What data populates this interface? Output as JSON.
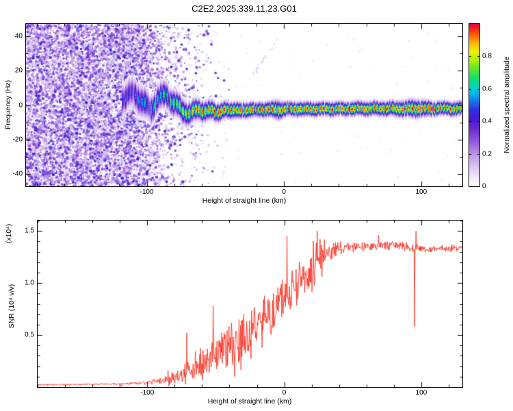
{
  "title": "C2E2.2025.339.11.23.G01",
  "colors": {
    "background": "#ffffff",
    "axis": "#000000",
    "snr_line": "#f93222"
  },
  "chart_data": [
    {
      "type": "heatmap",
      "title": "C2E2.2025.339.11.23.G01",
      "xlabel": "Height of straight line (km)",
      "ylabel": "Frequency (Hz)",
      "xlim": [
        -188,
        130
      ],
      "ylim": [
        -47,
        47
      ],
      "x_ticks": [
        -100,
        0,
        100
      ],
      "x_tick_labels": [
        "-100",
        "0",
        "100"
      ],
      "y_ticks": [
        -40,
        -20,
        0,
        20,
        40
      ],
      "y_tick_labels": [
        "-40",
        "-20",
        "0",
        "20",
        "40"
      ],
      "x_minor_step": 20,
      "y_minor_step": 10,
      "grid": false,
      "colorbar": {
        "label": "Normalized spectral amplitude",
        "range": [
          0,
          1
        ],
        "ticks": [
          0,
          0.2,
          0.4,
          0.6,
          0.8
        ],
        "tick_labels": [
          "0",
          "0.2",
          "0.4",
          "0.6",
          "0.8"
        ]
      },
      "colormap": {
        "stops": [
          [
            0.0,
            "#ffffff"
          ],
          [
            0.05,
            "#f3ecfb"
          ],
          [
            0.12,
            "#dcc8f2"
          ],
          [
            0.2,
            "#bb94e8"
          ],
          [
            0.28,
            "#9257dd"
          ],
          [
            0.36,
            "#6a2ad0"
          ],
          [
            0.42,
            "#4619cf"
          ],
          [
            0.47,
            "#2f2fe0"
          ],
          [
            0.52,
            "#1e6df0"
          ],
          [
            0.56,
            "#00a8f0"
          ],
          [
            0.6,
            "#00d0d0"
          ],
          [
            0.64,
            "#00dc9a"
          ],
          [
            0.68,
            "#20e060"
          ],
          [
            0.73,
            "#66e828"
          ],
          [
            0.78,
            "#b2ee00"
          ],
          [
            0.83,
            "#eef000"
          ],
          [
            0.87,
            "#ffc800"
          ],
          [
            0.91,
            "#ff8c00"
          ],
          [
            0.95,
            "#ff4600"
          ],
          [
            1.0,
            "#e4003c"
          ]
        ]
      },
      "noise_field": {
        "comment": "broadband purple speckle noise left of signal acquisition",
        "x_range": [
          -188,
          -40
        ],
        "dense_end_km": -105,
        "fade_scale_km": 16,
        "value_range": [
          0.08,
          0.48
        ]
      },
      "signal_trace": {
        "comment": "narrowband carrier: center frequency (Hz), peak normalized amplitude, gaussian half-width sigma (Hz) vs height (km)",
        "x": [
          -118,
          -110,
          -103,
          -97,
          -92,
          -86,
          -80,
          -74,
          -68,
          -62,
          -56,
          -50,
          -44,
          -38,
          -30,
          -20,
          -10,
          -5,
          0,
          20,
          40,
          60,
          80,
          95,
          110,
          130
        ],
        "freq": [
          4,
          7,
          2,
          -3,
          4,
          6,
          1,
          -3,
          -5,
          -2,
          -4,
          -3,
          -4,
          -3,
          -3,
          -2.5,
          -2.5,
          -2.5,
          -2.5,
          -2.2,
          -2.2,
          -2,
          -2,
          -2,
          -2,
          -2
        ],
        "peak": [
          0.45,
          0.5,
          0.55,
          0.6,
          0.6,
          0.65,
          0.72,
          0.8,
          0.88,
          0.95,
          1,
          1,
          1,
          1,
          1,
          1,
          1,
          1,
          1,
          1,
          1,
          1,
          1,
          1,
          1,
          1
        ],
        "sigma": [
          5,
          5,
          4.8,
          4.6,
          4.4,
          4.2,
          4,
          3.8,
          3.4,
          3.2,
          3,
          2.8,
          2.6,
          2.5,
          2.4,
          2.3,
          2.3,
          3.0,
          2.3,
          2.2,
          2.2,
          2.2,
          2.3,
          2.8,
          2.2,
          2.2
        ]
      }
    },
    {
      "type": "line",
      "xlabel": "Height of straight line (km)",
      "ylabel": "SNR (10⁴ v/v)",
      "scale_label": "(x10⁴)",
      "xlim": [
        -180,
        130
      ],
      "ylim": [
        0,
        1.6
      ],
      "x_ticks": [
        -100,
        0,
        100
      ],
      "x_tick_labels": [
        "-100",
        "0",
        "100"
      ],
      "y_ticks": [
        0.5,
        1.0,
        1.5
      ],
      "y_tick_labels": [
        "0.5",
        "1.0",
        "1.5"
      ],
      "x_minor_step": 20,
      "y_minor_step": 0.1,
      "grid": false,
      "legend": "none",
      "series": [
        {
          "name": "SNR",
          "color": "#f93222",
          "units": "x10^4 v/v",
          "comment": "baseline value and noise envelope (units 1e4 v/v) vs height (km); estimated from plot",
          "anchors": [
            [
              -180,
              0.02,
              0.008
            ],
            [
              -150,
              0.025,
              0.01
            ],
            [
              -120,
              0.03,
              0.012
            ],
            [
              -100,
              0.04,
              0.02
            ],
            [
              -90,
              0.06,
              0.035
            ],
            [
              -82,
              0.09,
              0.06
            ],
            [
              -75,
              0.13,
              0.12
            ],
            [
              -68,
              0.16,
              0.16
            ],
            [
              -60,
              0.2,
              0.2
            ],
            [
              -52,
              0.28,
              0.24
            ],
            [
              -45,
              0.34,
              0.26
            ],
            [
              -38,
              0.42,
              0.28
            ],
            [
              -30,
              0.5,
              0.3
            ],
            [
              -22,
              0.56,
              0.3
            ],
            [
              -15,
              0.63,
              0.3
            ],
            [
              -8,
              0.72,
              0.3
            ],
            [
              0,
              0.82,
              0.28
            ],
            [
              8,
              0.95,
              0.26
            ],
            [
              15,
              1.05,
              0.26
            ],
            [
              22,
              1.16,
              0.28
            ],
            [
              30,
              1.28,
              0.13
            ],
            [
              40,
              1.33,
              0.08
            ],
            [
              55,
              1.35,
              0.05
            ],
            [
              70,
              1.36,
              0.05
            ],
            [
              85,
              1.37,
              0.05
            ],
            [
              93,
              1.33,
              0.06
            ],
            [
              98,
              1.34,
              0.05
            ],
            [
              105,
              1.31,
              0.04
            ],
            [
              115,
              1.33,
              0.04
            ],
            [
              130,
              1.34,
              0.04
            ]
          ],
          "spikes": [
            [
              -71,
              0.52
            ],
            [
              -52,
              0.78
            ],
            [
              -36,
              0.1
            ],
            [
              2,
              1.45
            ],
            [
              24,
              1.5
            ],
            [
              26,
              1.42
            ],
            [
              95,
              0.58
            ],
            [
              96.2,
              1.5
            ]
          ]
        }
      ]
    }
  ]
}
